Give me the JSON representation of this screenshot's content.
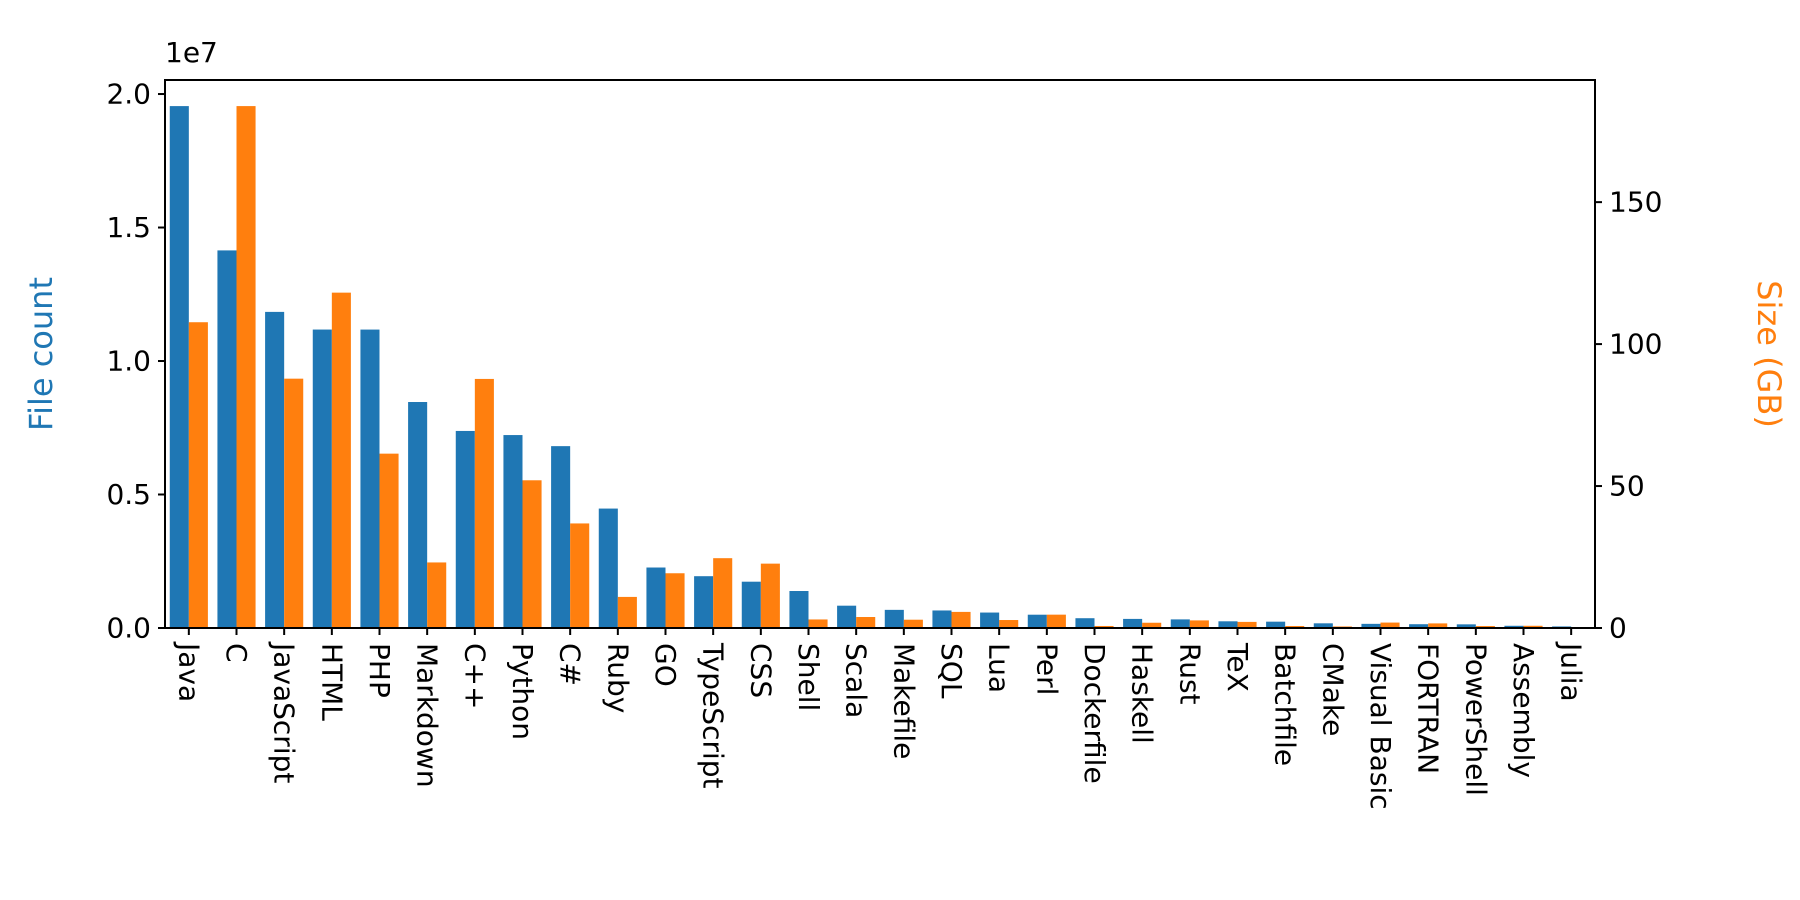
{
  "chart_data": {
    "type": "bar",
    "title": "",
    "offset_text": "1e7",
    "ylabel_left": "File count",
    "ylabel_right": "Size (GB)",
    "grid": false,
    "legend": "none",
    "background": "#ffffff",
    "categories": [
      "Java",
      "C",
      "JavaScript",
      "HTML",
      "PHP",
      "Markdown",
      "C++",
      "Python",
      "C#",
      "Ruby",
      "GO",
      "TypeScript",
      "CSS",
      "Shell",
      "Scala",
      "Makefile",
      "SQL",
      "Lua",
      "Perl",
      "Dockerfile",
      "Haskell",
      "Rust",
      "TeX",
      "Batchfile",
      "CMake",
      "Visual Basic",
      "FORTRAN",
      "PowerShell",
      "Assembly",
      "Julia"
    ],
    "series": [
      {
        "name": "File count",
        "axis": "left",
        "color": "#1f77b4",
        "values": [
          19548190,
          14143113,
          11839883,
          11178557,
          11177610,
          8464626,
          7380520,
          7226626,
          6811652,
          4473331,
          2265436,
          1940406,
          1734406,
          1385648,
          835755,
          679430,
          656671,
          578554,
          497949,
          366505,
          340623,
          322431,
          251015,
          236945,
          175282,
          155652,
          142038,
          136846,
          82905,
          58317
        ]
      },
      {
        "name": "Size (GB)",
        "axis": "right",
        "color": "#ff7f0e",
        "values": [
          107.7,
          183.83,
          87.82,
          118.12,
          61.41,
          23.09,
          87.73,
          52.03,
          36.83,
          10.95,
          19.28,
          24.59,
          22.67,
          3.01,
          3.87,
          2.92,
          5.67,
          2.81,
          4.7,
          0.71,
          1.85,
          2.68,
          2.15,
          0.7,
          0.54,
          1.91,
          1.62,
          0.69,
          0.78,
          0.29
        ]
      }
    ],
    "y_left": {
      "lim": [
        0,
        20525600
      ],
      "ticks": [
        0,
        5000000,
        10000000,
        15000000,
        20000000
      ],
      "tick_labels": [
        "0.0",
        "0.5",
        "1.0",
        "1.5",
        "2.0"
      ]
    },
    "y_right": {
      "lim": [
        0,
        193.02
      ],
      "ticks": [
        0,
        50,
        100,
        150
      ],
      "tick_labels": [
        "0",
        "50",
        "100",
        "150"
      ]
    },
    "text_color": "#000000"
  }
}
